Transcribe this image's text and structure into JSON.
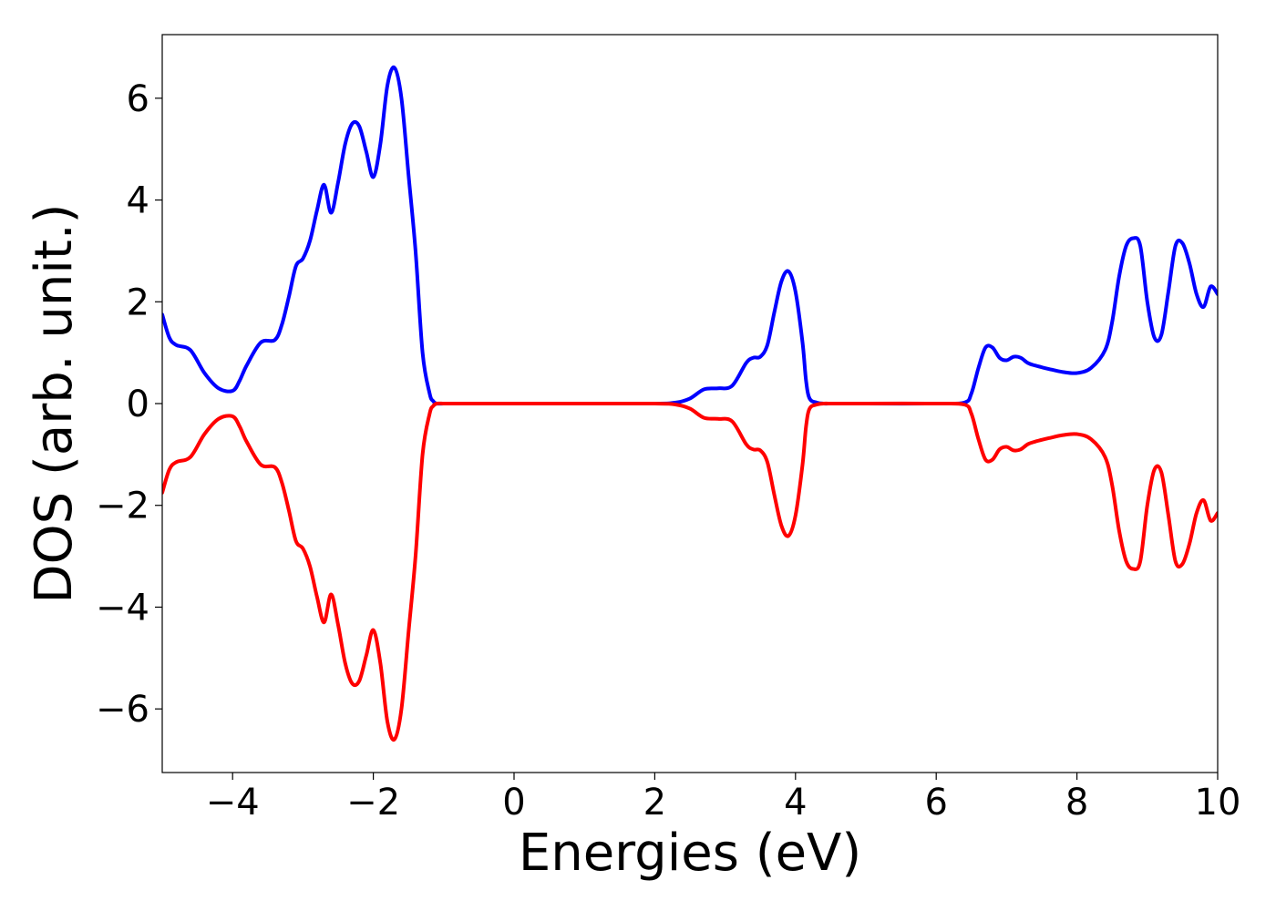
{
  "chart_data": {
    "type": "line",
    "xlabel": "Energies (eV)",
    "ylabel": "DOS (arb. unit.)",
    "xlim": [
      -5,
      10
    ],
    "ylim": [
      -7.25,
      7.25
    ],
    "xticks": [
      -4,
      -2,
      0,
      2,
      4,
      6,
      8,
      10
    ],
    "yticks": [
      -6,
      -4,
      -2,
      0,
      2,
      4,
      6
    ],
    "xtick_labels": [
      "−4",
      "−2",
      "0",
      "2",
      "4",
      "6",
      "8",
      "10"
    ],
    "ytick_labels": [
      "−6",
      "−4",
      "−2",
      "0",
      "2",
      "4",
      "6"
    ],
    "grid": false,
    "legend": "none",
    "series": [
      {
        "color": "#0000ff",
        "x": [
          -5.0,
          -4.9,
          -4.8,
          -4.6,
          -4.4,
          -4.2,
          -4.0,
          -3.9,
          -3.8,
          -3.6,
          -3.4,
          -3.3,
          -3.2,
          -3.1,
          -3.0,
          -2.9,
          -2.8,
          -2.7,
          -2.6,
          -2.5,
          -2.4,
          -2.3,
          -2.2,
          -2.1,
          -2.0,
          -1.9,
          -1.8,
          -1.7,
          -1.6,
          -1.5,
          -1.4,
          -1.3,
          -1.2,
          -1.15,
          -1.1,
          -1.0,
          -0.9,
          -0.8,
          -0.7,
          -0.6,
          -0.5,
          0.0,
          1.0,
          2.0,
          2.3,
          2.5,
          2.7,
          2.9,
          3.1,
          3.3,
          3.4,
          3.5,
          3.6,
          3.7,
          3.8,
          3.9,
          4.0,
          4.1,
          4.15,
          4.2,
          4.3,
          4.4,
          4.5,
          4.6,
          4.7,
          4.8,
          5.0,
          6.0,
          6.4,
          6.5,
          6.6,
          6.7,
          6.8,
          6.9,
          7.0,
          7.1,
          7.2,
          7.3,
          7.4,
          7.6,
          7.8,
          8.0,
          8.2,
          8.4,
          8.5,
          8.6,
          8.7,
          8.8,
          8.9,
          9.0,
          9.1,
          9.2,
          9.3,
          9.4,
          9.5,
          9.6,
          9.7,
          9.8,
          9.9,
          10.0
        ],
        "y": [
          1.75,
          1.3,
          1.15,
          1.05,
          0.6,
          0.3,
          0.25,
          0.45,
          0.75,
          1.2,
          1.25,
          1.55,
          2.1,
          2.7,
          2.85,
          3.2,
          3.8,
          4.3,
          3.75,
          4.35,
          5.1,
          5.5,
          5.45,
          4.95,
          4.45,
          5.1,
          6.25,
          6.6,
          6.0,
          4.5,
          3.0,
          1.0,
          0.2,
          0.05,
          0.0,
          0.0,
          0.0,
          0.0,
          0.0,
          0.0,
          0.0,
          0.0,
          0.0,
          0.0,
          0.02,
          0.1,
          0.28,
          0.3,
          0.35,
          0.8,
          0.9,
          0.92,
          1.15,
          1.8,
          2.4,
          2.6,
          2.2,
          1.2,
          0.45,
          0.1,
          0.02,
          0.0,
          0.0,
          0.0,
          0.0,
          0.0,
          0.0,
          0.0,
          0.02,
          0.2,
          0.7,
          1.1,
          1.1,
          0.9,
          0.85,
          0.92,
          0.9,
          0.8,
          0.75,
          0.68,
          0.62,
          0.6,
          0.7,
          1.05,
          1.6,
          2.5,
          3.1,
          3.25,
          3.1,
          2.0,
          1.3,
          1.35,
          2.2,
          3.1,
          3.15,
          2.75,
          2.15,
          1.9,
          2.3,
          2.15
        ],
        "xs_note": ""
      },
      {
        "color": "#ff0000",
        "x": [
          -5.0,
          -4.9,
          -4.8,
          -4.6,
          -4.4,
          -4.2,
          -4.0,
          -3.9,
          -3.8,
          -3.6,
          -3.4,
          -3.3,
          -3.2,
          -3.1,
          -3.0,
          -2.9,
          -2.8,
          -2.7,
          -2.6,
          -2.5,
          -2.4,
          -2.3,
          -2.2,
          -2.1,
          -2.0,
          -1.9,
          -1.8,
          -1.7,
          -1.6,
          -1.5,
          -1.4,
          -1.3,
          -1.2,
          -1.15,
          -1.1,
          -1.0,
          -0.9,
          -0.8,
          -0.7,
          -0.6,
          -0.5,
          0.0,
          1.0,
          2.0,
          2.3,
          2.5,
          2.7,
          2.9,
          3.1,
          3.3,
          3.4,
          3.5,
          3.6,
          3.7,
          3.8,
          3.9,
          4.0,
          4.1,
          4.15,
          4.2,
          4.3,
          4.4,
          4.5,
          4.6,
          4.7,
          4.8,
          5.0,
          6.0,
          6.4,
          6.5,
          6.6,
          6.7,
          6.8,
          6.9,
          7.0,
          7.1,
          7.2,
          7.3,
          7.4,
          7.6,
          7.8,
          8.0,
          8.2,
          8.4,
          8.5,
          8.6,
          8.7,
          8.8,
          8.9,
          9.0,
          9.1,
          9.2,
          9.3,
          9.4,
          9.5,
          9.6,
          9.7,
          9.8,
          9.9,
          10.0
        ],
        "y": [
          -1.75,
          -1.3,
          -1.15,
          -1.05,
          -0.6,
          -0.3,
          -0.25,
          -0.45,
          -0.75,
          -1.2,
          -1.25,
          -1.55,
          -2.1,
          -2.7,
          -2.85,
          -3.2,
          -3.8,
          -4.3,
          -3.75,
          -4.35,
          -5.1,
          -5.5,
          -5.45,
          -4.95,
          -4.45,
          -5.1,
          -6.25,
          -6.6,
          -6.0,
          -4.5,
          -3.0,
          -1.0,
          -0.2,
          -0.05,
          0.0,
          0.0,
          0.0,
          0.0,
          0.0,
          0.0,
          0.0,
          0.0,
          0.0,
          0.0,
          -0.02,
          -0.1,
          -0.28,
          -0.3,
          -0.35,
          -0.8,
          -0.9,
          -0.92,
          -1.15,
          -1.8,
          -2.4,
          -2.6,
          -2.2,
          -1.2,
          -0.45,
          -0.1,
          -0.02,
          0.0,
          0.0,
          0.0,
          0.0,
          0.0,
          0.0,
          0.0,
          -0.02,
          -0.2,
          -0.7,
          -1.1,
          -1.1,
          -0.9,
          -0.85,
          -0.92,
          -0.9,
          -0.8,
          -0.75,
          -0.68,
          -0.62,
          -0.6,
          -0.7,
          -1.05,
          -1.6,
          -2.5,
          -3.1,
          -3.25,
          -3.1,
          -2.0,
          -1.3,
          -1.35,
          -2.2,
          -3.1,
          -3.15,
          -2.75,
          -2.15,
          -1.9,
          -2.3,
          -2.15
        ]
      }
    ]
  }
}
